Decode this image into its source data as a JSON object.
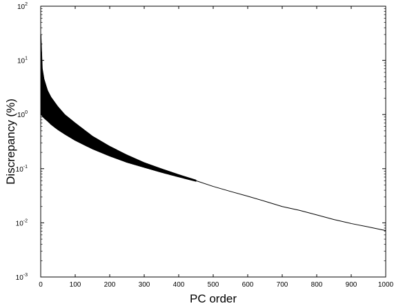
{
  "chart_data": {
    "type": "line",
    "title": "",
    "xlabel": "PC order",
    "ylabel": "Discrepancy (%)",
    "xlim": [
      0,
      1000
    ],
    "ylim": [
      0.001,
      100
    ],
    "yscale": "log",
    "grid": false,
    "legend": "none",
    "x_ticks": [
      "0",
      "100",
      "200",
      "300",
      "400",
      "500",
      "600",
      "700",
      "800",
      "900",
      "1000"
    ],
    "y_ticks": [
      {
        "base": "10",
        "exp": "-3"
      },
      {
        "base": "10",
        "exp": "-2"
      },
      {
        "base": "10",
        "exp": "-1"
      },
      {
        "base": "10",
        "exp": "0"
      },
      {
        "base": "10",
        "exp": "1"
      },
      {
        "base": "10",
        "exp": "2"
      }
    ],
    "series": [
      {
        "note_shape": "oscillating band",
        "color": "#000000",
        "upper_envelope": {
          "x": [
            1,
            5,
            10,
            20,
            30,
            50,
            70,
            100,
            150,
            200,
            250,
            300,
            350,
            400,
            450
          ],
          "y": [
            30,
            7,
            4.5,
            2.8,
            2.1,
            1.4,
            1.0,
            0.7,
            0.4,
            0.26,
            0.18,
            0.13,
            0.1,
            0.078,
            0.062
          ]
        },
        "lower_envelope": {
          "x": [
            1,
            5,
            10,
            20,
            30,
            50,
            70,
            100,
            150,
            200,
            250,
            300,
            350,
            400,
            450
          ],
          "y": [
            1.0,
            0.92,
            0.85,
            0.75,
            0.65,
            0.52,
            0.43,
            0.33,
            0.23,
            0.17,
            0.13,
            0.105,
            0.085,
            0.07,
            0.058
          ]
        },
        "line": {
          "x": [
            450,
            500,
            550,
            600,
            650,
            700,
            750,
            800,
            850,
            900,
            950,
            1000
          ],
          "y": [
            0.06,
            0.047,
            0.038,
            0.031,
            0.025,
            0.02,
            0.017,
            0.014,
            0.0115,
            0.0097,
            0.0084,
            0.0072
          ]
        }
      }
    ]
  }
}
